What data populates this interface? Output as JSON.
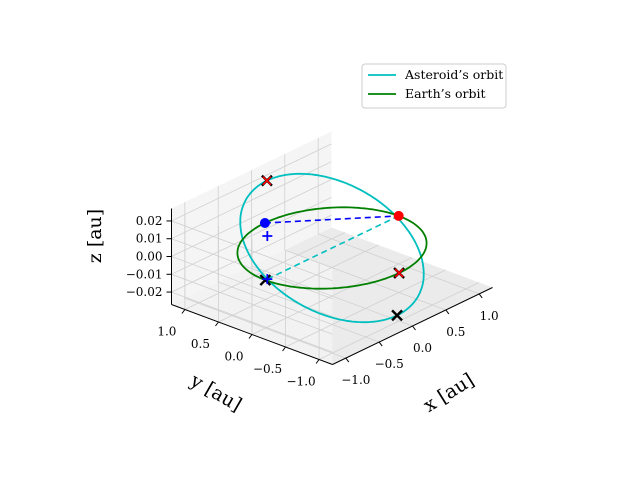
{
  "chart_data": {
    "type": "line",
    "projection": "3d",
    "grid": true,
    "legend_position": "top-right",
    "axes": {
      "x": {
        "label": "x [au]",
        "range": [
          -1.2,
          1.2
        ],
        "ticks": [
          -1.0,
          -0.5,
          0.0,
          0.5,
          1.0
        ],
        "tick_labels": [
          "−1.0",
          "−0.5",
          "0.0",
          "0.5",
          "1.0"
        ]
      },
      "y": {
        "label": "y [au]",
        "range": [
          -1.2,
          1.2
        ],
        "ticks": [
          -1.0,
          -0.5,
          0.0,
          0.5,
          1.0
        ],
        "tick_labels": [
          "−1.0",
          "−0.5",
          "0.0",
          "0.5",
          "1.0"
        ]
      },
      "z": {
        "label": "z [au]",
        "range": [
          -0.027,
          0.027
        ],
        "ticks": [
          -0.02,
          -0.01,
          0.0,
          0.01,
          0.02
        ],
        "tick_labels": [
          "−0.02",
          "−0.01",
          "0.00",
          "0.01",
          "0.02"
        ]
      }
    },
    "series": [
      {
        "name": "Asteroid’s orbit",
        "color": "#00bfbf",
        "shape": "ellipse",
        "center": [
          0.0,
          0.0,
          0.0
        ],
        "u": [
          1.0,
          0.0,
          0.0
        ],
        "v": [
          0.0,
          1.0,
          0.025
        ],
        "scale": 0.97
      },
      {
        "name": "Earth’s orbit",
        "color": "#008000",
        "shape": "circle",
        "center": [
          0.0,
          0.0,
          0.0
        ],
        "radius": 1.0
      }
    ],
    "lines": [
      {
        "color": "#0000ff",
        "style": "dashed",
        "from": [
          0.0,
          1.0,
          0.0
        ],
        "to": [
          1.0,
          0.0,
          0.0
        ]
      },
      {
        "color": "#00bfbf",
        "style": "dashed",
        "from": [
          -0.97,
          0.0,
          0.0
        ],
        "to": [
          0.97,
          0.0,
          0.0
        ]
      }
    ],
    "points": [
      {
        "marker": "circle",
        "color": "#0000ff",
        "xyz": [
          0.0,
          1.0,
          0.0
        ]
      },
      {
        "marker": "circle",
        "color": "#ff0000",
        "xyz": [
          1.0,
          0.0,
          0.0
        ]
      },
      {
        "marker": "x",
        "color": "#000000",
        "xyz": [
          -1.0,
          0.0,
          0.0
        ]
      },
      {
        "marker": "x",
        "color": "#000000",
        "xyz": [
          0.0,
          -1.0,
          0.0
        ]
      },
      {
        "marker": "x",
        "color": "#000000",
        "xyz": [
          0.0,
          0.97,
          0.02425
        ]
      },
      {
        "marker": "x",
        "color": "#000000",
        "xyz": [
          0.0,
          -0.97,
          -0.02425
        ]
      },
      {
        "marker": "plus",
        "color": "#0000ff",
        "xyz": [
          -0.97,
          0.0,
          0.02425
        ]
      },
      {
        "marker": "plus",
        "color": "#0000ff",
        "xyz": [
          -0.97,
          0.0,
          0.0
        ]
      },
      {
        "marker": "x",
        "color": "#ff0000",
        "xyz": [
          0.0,
          0.97,
          0.02425
        ]
      },
      {
        "marker": "x",
        "color": "#ff0000",
        "xyz": [
          0.0,
          -1.0,
          0.0
        ]
      }
    ]
  }
}
